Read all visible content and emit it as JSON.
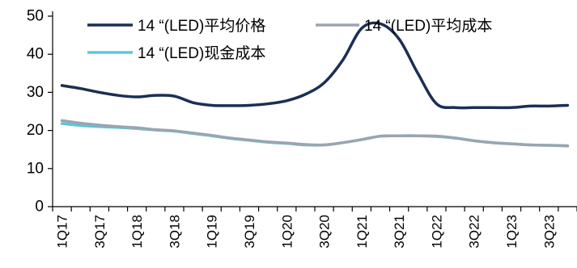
{
  "chart_data": {
    "type": "line",
    "title": "",
    "xlabel": "",
    "ylabel": "",
    "ylim": [
      0,
      50
    ],
    "yticks": [
      0,
      10,
      20,
      30,
      40,
      50
    ],
    "x": [
      "1Q17",
      "2Q17",
      "3Q17",
      "4Q17",
      "1Q18",
      "2Q18",
      "3Q18",
      "4Q18",
      "1Q19",
      "2Q19",
      "3Q19",
      "4Q19",
      "1Q20",
      "2Q20",
      "3Q20",
      "4Q20",
      "1Q21",
      "2Q21",
      "3Q21",
      "4Q21",
      "1Q22",
      "2Q22",
      "3Q22",
      "4Q22",
      "1Q23",
      "2Q23",
      "3Q23",
      "4Q23"
    ],
    "x_tick_labels": [
      "1Q17",
      "3Q17",
      "1Q18",
      "3Q18",
      "1Q19",
      "3Q19",
      "1Q20",
      "3Q20",
      "1Q21",
      "3Q21",
      "1Q22",
      "3Q22",
      "1Q23",
      "3Q23"
    ],
    "legend_position": "top",
    "grid": false,
    "series": [
      {
        "name": "14 “(LED)平均价格",
        "color": "#1b2f55",
        "values": [
          31.8,
          31.0,
          30.0,
          29.2,
          28.8,
          29.2,
          29.0,
          27.3,
          26.6,
          26.5,
          26.6,
          27.0,
          27.8,
          29.5,
          32.5,
          38.5,
          46.8,
          48.0,
          44.0,
          35.0,
          27.0,
          26.0,
          26.0,
          26.0,
          26.0,
          26.4,
          26.4,
          26.6
        ]
      },
      {
        "name": "14 “(LED)平均成本",
        "color": "#9aa5b1",
        "values": [
          22.6,
          21.9,
          21.4,
          21.0,
          20.7,
          20.2,
          19.9,
          19.3,
          18.7,
          18.0,
          17.5,
          17.0,
          16.7,
          16.3,
          16.2,
          16.8,
          17.6,
          18.5,
          18.6,
          18.6,
          18.5,
          18.0,
          17.3,
          16.8,
          16.5,
          16.2,
          16.1,
          16.0
        ]
      },
      {
        "name": "14 “(LED)现金成本",
        "color": "#5cc8d7",
        "values": [
          21.8,
          21.3,
          21.0,
          20.8,
          20.5,
          20.1,
          19.8,
          19.2,
          18.6,
          17.9,
          17.4,
          16.9,
          16.6,
          16.2,
          16.2,
          16.8,
          17.6,
          18.5,
          18.6,
          18.6,
          18.4,
          18.0,
          17.3,
          16.8,
          16.5,
          16.2,
          16.1,
          15.9
        ]
      }
    ]
  }
}
